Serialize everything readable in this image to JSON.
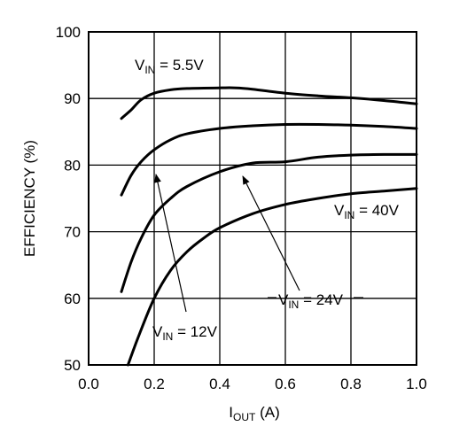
{
  "chart_data": {
    "type": "line",
    "xlabel_main": "I",
    "xlabel_sub": "OUT",
    "xlabel_unit": " (A)",
    "ylabel": "EFFICIENCY (%)",
    "xlim": [
      0,
      1.0
    ],
    "ylim": [
      50,
      100
    ],
    "xticks": [
      "0.0",
      "0.2",
      "0.4",
      "0.6",
      "0.8",
      "1.0"
    ],
    "yticks": [
      "50",
      "60",
      "70",
      "80",
      "90",
      "100"
    ],
    "grid": true,
    "series": [
      {
        "name": "VIN = 5.5V",
        "label_main": "V",
        "label_sub": "IN",
        "label_rest": " = 5.5V",
        "x": [
          0.1,
          0.13,
          0.16,
          0.2,
          0.25,
          0.3,
          0.4,
          0.45,
          0.5,
          0.6,
          0.7,
          0.8,
          0.9,
          1.0
        ],
        "y": [
          87.0,
          88.3,
          89.8,
          90.8,
          91.3,
          91.5,
          91.6,
          91.6,
          91.4,
          90.8,
          90.4,
          90.1,
          89.7,
          89.2
        ]
      },
      {
        "name": "VIN = 12V",
        "label_main": "V",
        "label_sub": "IN",
        "label_rest": " = 12V",
        "x": [
          0.1,
          0.13,
          0.16,
          0.2,
          0.25,
          0.3,
          0.4,
          0.5,
          0.6,
          0.7,
          0.8,
          0.9,
          1.0
        ],
        "y": [
          75.5,
          78.5,
          80.5,
          82.3,
          83.8,
          84.7,
          85.5,
          85.9,
          86.1,
          86.1,
          86.0,
          85.8,
          85.5
        ]
      },
      {
        "name": "VIN = 24V",
        "label_main": "V",
        "label_sub": "IN",
        "label_rest": " = 24V",
        "x": [
          0.1,
          0.13,
          0.16,
          0.2,
          0.25,
          0.3,
          0.4,
          0.5,
          0.6,
          0.7,
          0.8,
          0.9,
          1.0
        ],
        "y": [
          61.0,
          65.5,
          69.0,
          72.5,
          75.0,
          76.8,
          79.0,
          80.3,
          80.5,
          81.2,
          81.5,
          81.6,
          81.6
        ]
      },
      {
        "name": "VIN = 40V",
        "label_main": "V",
        "label_sub": "IN",
        "label_rest": " = 40V",
        "x": [
          0.12,
          0.15,
          0.2,
          0.25,
          0.3,
          0.35,
          0.4,
          0.5,
          0.6,
          0.7,
          0.8,
          0.9,
          1.0
        ],
        "y": [
          50.0,
          54.0,
          60.0,
          64.2,
          67.0,
          69.0,
          70.6,
          72.7,
          74.1,
          75.0,
          75.7,
          76.1,
          76.5
        ]
      }
    ]
  }
}
